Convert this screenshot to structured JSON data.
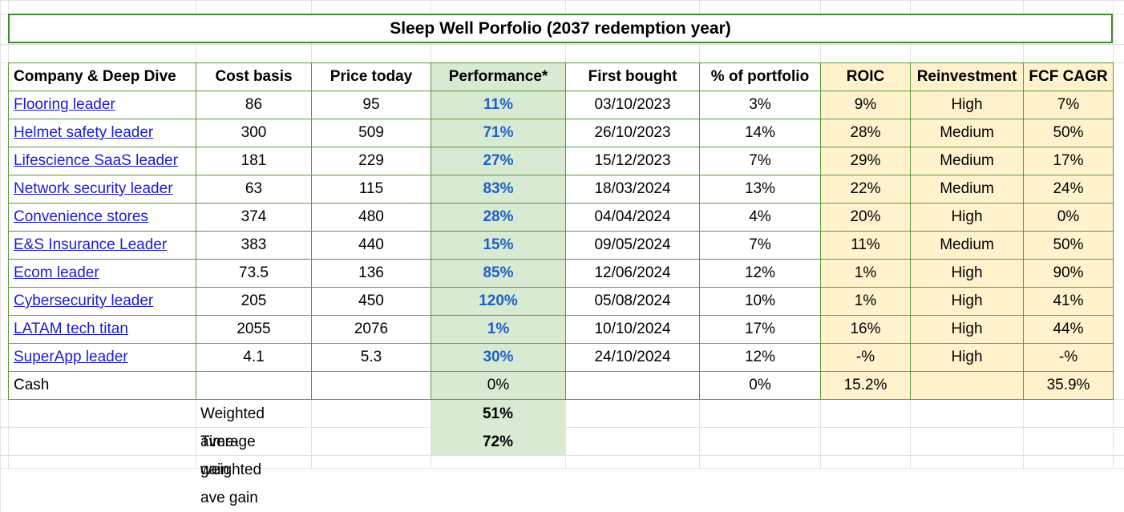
{
  "title": "Sleep Well Porfolio (2037 redemption year)",
  "headers": [
    "Company & Deep Dive",
    "Cost basis",
    "Price today",
    "Performance*",
    "First bought",
    "% of portfolio",
    "ROIC",
    "Reinvestment",
    "FCF CAGR"
  ],
  "rows": [
    {
      "company": "Flooring leader",
      "cost": "86",
      "price": "95",
      "perf": "11%",
      "first": "03/10/2023",
      "pct": "3%",
      "roic": "9%",
      "reinv": "High",
      "fcf": "7%"
    },
    {
      "company": "Helmet safety leader",
      "cost": "300",
      "price": "509",
      "perf": "71%",
      "first": "26/10/2023",
      "pct": "14%",
      "roic": "28%",
      "reinv": "Medium",
      "fcf": "50%"
    },
    {
      "company": "Lifescience SaaS leader",
      "cost": "181",
      "price": "229",
      "perf": "27%",
      "first": "15/12/2023",
      "pct": "7%",
      "roic": "29%",
      "reinv": "Medium",
      "fcf": "17%"
    },
    {
      "company": "Network security leader",
      "cost": "63",
      "price": "115",
      "perf": "83%",
      "first": "18/03/2024",
      "pct": "13%",
      "roic": "22%",
      "reinv": "Medium",
      "fcf": "24%"
    },
    {
      "company": "Convenience stores",
      "cost": "374",
      "price": "480",
      "perf": "28%",
      "first": "04/04/2024",
      "pct": "4%",
      "roic": "20%",
      "reinv": "High",
      "fcf": "0%"
    },
    {
      "company": "E&S Insurance Leader",
      "cost": "383",
      "price": "440",
      "perf": "15%",
      "first": "09/05/2024",
      "pct": "7%",
      "roic": "11%",
      "reinv": "Medium",
      "fcf": "50%"
    },
    {
      "company": "Ecom leader",
      "cost": "73.5",
      "price": "136",
      "perf": "85%",
      "first": "12/06/2024",
      "pct": "12%",
      "roic": "1%",
      "reinv": "High",
      "fcf": "90%"
    },
    {
      "company": "Cybersecurity leader",
      "cost": "205",
      "price": "450",
      "perf": "120%",
      "first": "05/08/2024",
      "pct": "10%",
      "roic": "1%",
      "reinv": "High",
      "fcf": "41%"
    },
    {
      "company": "LATAM tech titan",
      "cost": "2055",
      "price": "2076",
      "perf": "1%",
      "first": "10/10/2024",
      "pct": "17%",
      "roic": "16%",
      "reinv": "High",
      "fcf": "44%"
    },
    {
      "company": "SuperApp leader",
      "cost": "4.1",
      "price": "5.3",
      "perf": "30%",
      "first": "24/10/2024",
      "pct": "12%",
      "roic": "-%",
      "reinv": "High",
      "fcf": "-%"
    }
  ],
  "cash_row": {
    "company": "Cash",
    "cost": "",
    "price": "",
    "perf": "0%",
    "first": "",
    "pct": "0%",
    "roic": "15.2%",
    "reinv": "",
    "fcf": "35.9%"
  },
  "summary": [
    {
      "label": "Weighted average gain",
      "value": "51%"
    },
    {
      "label": "Time-weighted ave gain",
      "value": "72%"
    }
  ],
  "colors": {
    "performance_fill": "#d9ead3",
    "quality_fill": "#fff2cc",
    "border_green": "#3e8a2f",
    "link_blue": "#1a1adb",
    "performance_text": "#1f5fc6"
  }
}
